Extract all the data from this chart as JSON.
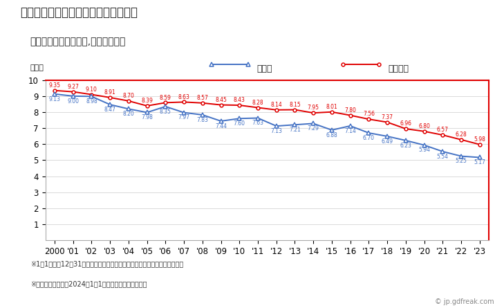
{
  "title": "市原市の人口千人当たり出生数の推移",
  "subtitle": "（住民基本台帳ベース,日本人住民）",
  "ylabel": "（人）",
  "footnote1": "※1月1日から12月31日までの外国人を除く日本人住民の千人当たり出生数。",
  "footnote2": "※市区町村の場合は2024年1月1日時点の市区町村境界。",
  "watermark": "© jp.gdfreak.com",
  "years": [
    2000,
    2001,
    2002,
    2003,
    2004,
    2005,
    2006,
    2007,
    2008,
    2009,
    2010,
    2011,
    2012,
    2013,
    2014,
    2015,
    2016,
    2017,
    2018,
    2019,
    2020,
    2021,
    2022,
    2023
  ],
  "ichihara": [
    9.13,
    9.0,
    8.98,
    8.47,
    8.2,
    7.98,
    8.35,
    7.97,
    7.83,
    7.44,
    7.6,
    7.63,
    7.13,
    7.21,
    7.29,
    6.88,
    7.14,
    6.7,
    6.49,
    6.23,
    5.94,
    5.54,
    5.25,
    5.17
  ],
  "national": [
    9.35,
    9.27,
    9.1,
    8.91,
    8.7,
    8.39,
    8.59,
    8.63,
    8.57,
    8.45,
    8.43,
    8.28,
    8.14,
    8.15,
    7.95,
    8.01,
    7.8,
    7.56,
    7.37,
    6.96,
    6.8,
    6.57,
    6.28,
    5.98
  ],
  "ichihara_color": "#4472c4",
  "national_color": "#e00000",
  "bg_color": "#ffffff",
  "border_color": "#e00000",
  "ylim": [
    0,
    10
  ],
  "yticks": [
    1,
    2,
    3,
    4,
    5,
    6,
    7,
    8,
    9,
    10
  ],
  "legend_ichihara": "市原市",
  "legend_national": "全国平均",
  "title_fontsize": 12,
  "subtitle_fontsize": 10,
  "label_fontsize": 8,
  "tick_fontsize": 8.5,
  "annot_fontsize": 5.5
}
